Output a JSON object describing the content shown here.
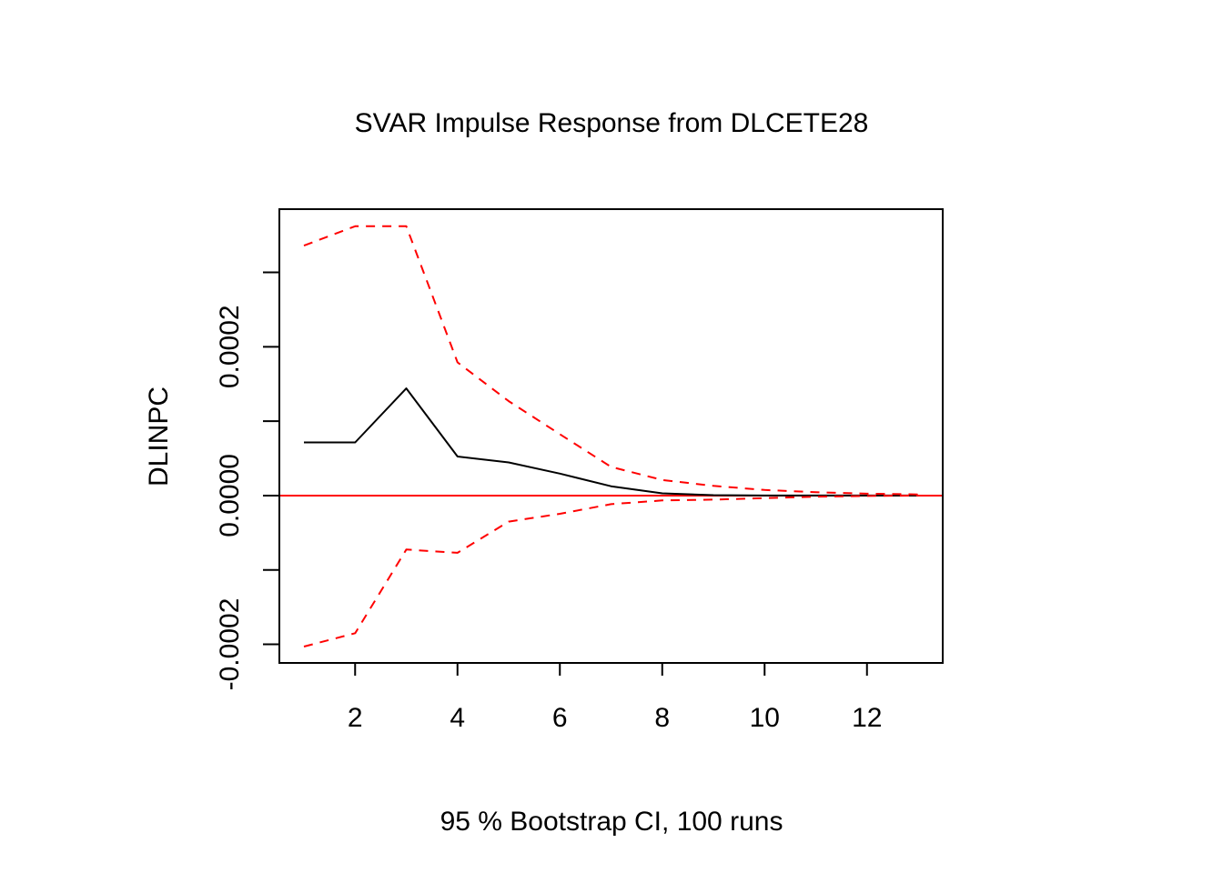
{
  "chart_data": {
    "type": "line",
    "title": "SVAR Impulse Response from DLCETE28",
    "xlabel": "95 % Bootstrap CI,  100 runs",
    "ylabel": "DLINPC",
    "x": [
      1,
      2,
      3,
      4,
      5,
      6,
      7,
      8,
      9,
      10,
      11,
      12,
      13
    ],
    "xlim": [
      0.52,
      13.48
    ],
    "ylim": [
      -0.000225,
      0.000385
    ],
    "x_ticks": [
      "2",
      "4",
      "6",
      "8",
      "10",
      "12"
    ],
    "y_ticks": [
      "-0.0002",
      "0.0000",
      "0.0002"
    ],
    "series": [
      {
        "role": "response",
        "color": "#000000",
        "line": "solid",
        "values": [
          7.15e-05,
          7.15e-05,
          0.000144,
          5.25e-05,
          4.45e-05,
          2.95e-05,
          1.25e-05,
          3e-06,
          5e-07,
          0.0,
          0.0,
          0.0,
          0.0
        ]
      },
      {
        "role": "upper",
        "color": "#ff0000",
        "line": "dashed",
        "values": [
          0.000336,
          0.000362,
          0.000362,
          0.000179,
          0.000127,
          8.25e-05,
          3.85e-05,
          2.1e-05,
          1.3e-05,
          7.5e-06,
          4.5e-06,
          2.5e-06,
          1.5e-06
        ]
      },
      {
        "role": "lower",
        "color": "#ff0000",
        "line": "dashed",
        "values": [
          -0.000203,
          -0.000185,
          -7.25e-05,
          -7.7e-05,
          -3.5e-05,
          -2.45e-05,
          -1.15e-05,
          -6.5e-06,
          -5.5e-06,
          -3.5e-06,
          -1.5e-06,
          -5e-07,
          0.0
        ]
      }
    ],
    "reference_line": {
      "y": 0,
      "color": "#ff0000"
    },
    "grid": false,
    "legend": "none"
  }
}
